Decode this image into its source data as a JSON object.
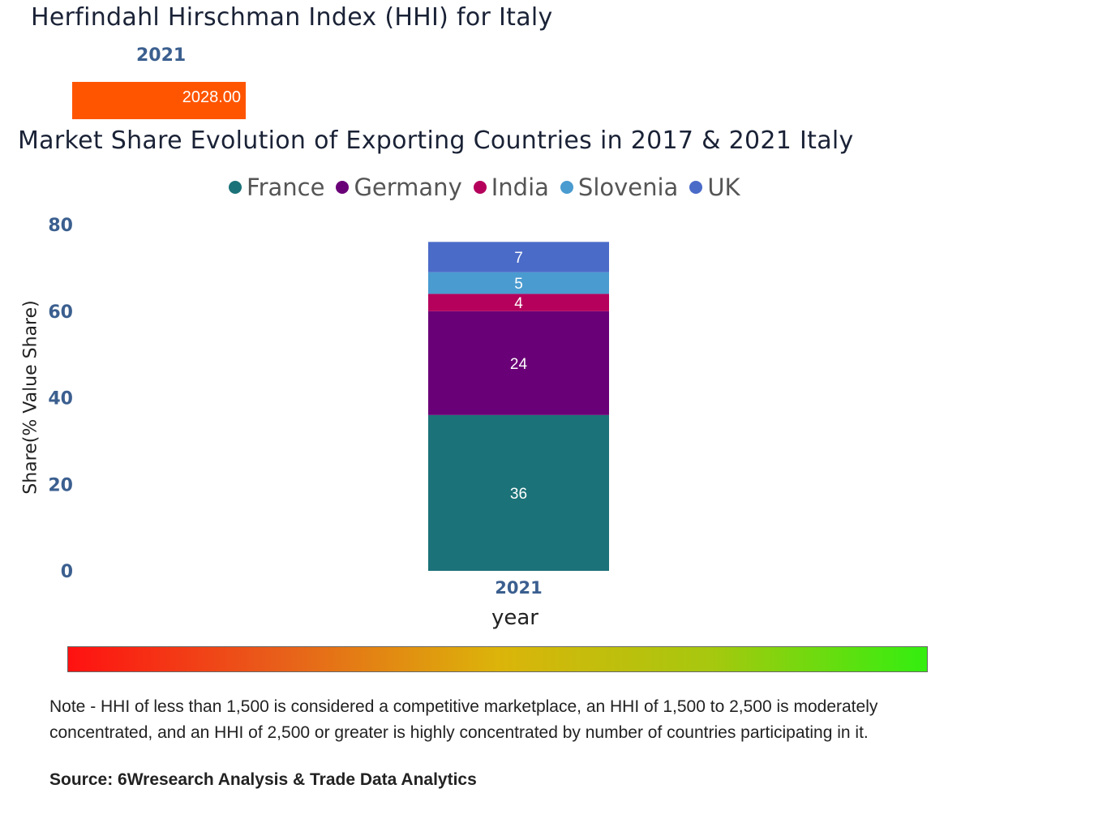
{
  "hhi": {
    "title": "Herfindahl Hirschman Index (HHI) for Italy",
    "year": "2021",
    "value_label": "2028.00",
    "bar_color": "#ff5500"
  },
  "chart_data": {
    "type": "bar",
    "stacked": true,
    "title": "Market Share Evolution of Exporting Countries in 2017 & 2021 Italy",
    "xlabel": "year",
    "ylabel": "Share(% Value Share)",
    "categories": [
      "2021"
    ],
    "ylim": [
      0,
      80
    ],
    "yticks": [
      "0",
      "20",
      "40",
      "60",
      "80"
    ],
    "grid": false,
    "legend_position": "top",
    "series": [
      {
        "name": "France",
        "values": [
          36
        ],
        "label": "36",
        "color": "#1b7278"
      },
      {
        "name": "Germany",
        "values": [
          24
        ],
        "label": "24",
        "color": "#6a0077"
      },
      {
        "name": "India",
        "values": [
          4
        ],
        "label": "4",
        "color": "#b5005c"
      },
      {
        "name": "Slovenia",
        "values": [
          5
        ],
        "label": "5",
        "color": "#4a9bd0"
      },
      {
        "name": "UK",
        "values": [
          7
        ],
        "label": "7",
        "color": "#4b6bc8"
      }
    ]
  },
  "footer": {
    "note": "Note - HHI of less than 1,500 is considered a competitive marketplace, an HHI of 1,500 to 2,500 is moderately concentrated, and an HHI of 2,500 or greater is highly concentrated by number of countries participating in it.",
    "source": "Source: 6Wresearch Analysis & Trade Data Analytics"
  }
}
